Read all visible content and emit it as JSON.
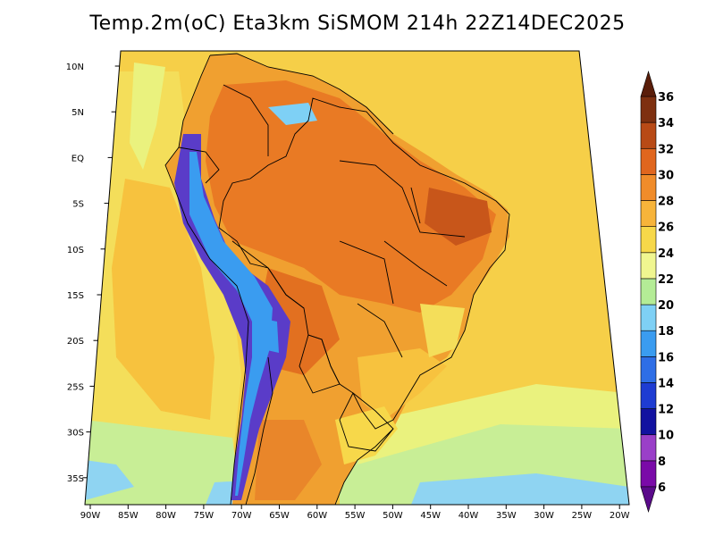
{
  "title": "Temp.2m(oC) Eta3km SiSMOM 214h 22Z14DEC2025",
  "map": {
    "lat_labels": [
      "10N",
      "5N",
      "EQ",
      "5S",
      "10S",
      "15S",
      "20S",
      "25S",
      "30S",
      "35S"
    ],
    "lon_labels": [
      "90W",
      "85W",
      "80W",
      "75W",
      "70W",
      "65W",
      "60W",
      "55W",
      "50W",
      "45W",
      "40W",
      "35W",
      "30W",
      "25W",
      "20W"
    ]
  },
  "colorbar": {
    "labels": [
      "6",
      "8",
      "10",
      "12",
      "14",
      "16",
      "18",
      "20",
      "22",
      "24",
      "26",
      "28",
      "30",
      "32",
      "34",
      "36"
    ],
    "colors": [
      "#7a0aa8",
      "#9a3fc8",
      "#1212a0",
      "#1e3cd2",
      "#2e6ee6",
      "#3a9cf0",
      "#7ed0f5",
      "#b4ec96",
      "#f0f690",
      "#f7d84a",
      "#f7b43a",
      "#f08c2a",
      "#e0661e",
      "#b84a16",
      "#7e3010"
    ]
  },
  "palette": {
    "ocean_warm": "#f7c23e",
    "ocean_mild": "#f4de5a",
    "ocean_cool": "#eaf27e",
    "land_hot": "#e97a24",
    "land_warm": "#f0a030",
    "andes_cold": "#5a3cc8",
    "south_cool": "#c8ee96",
    "far_south_cold": "#8fd4f2"
  }
}
